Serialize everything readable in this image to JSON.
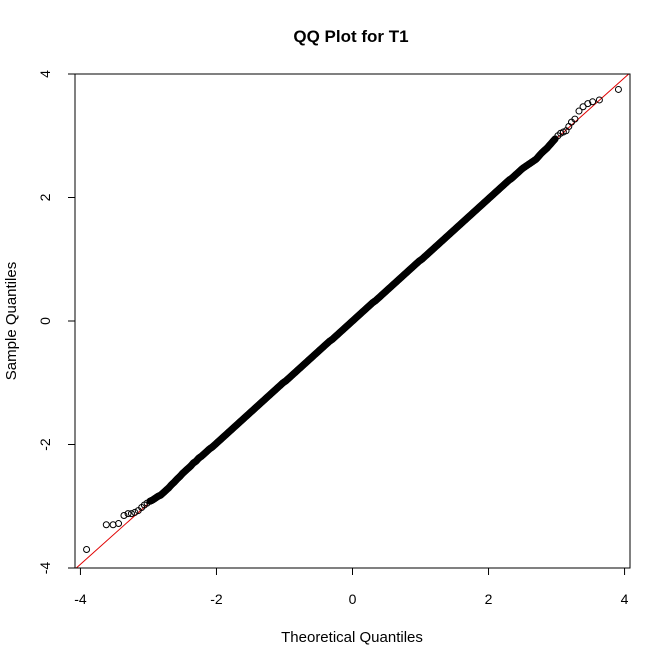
{
  "chart_data": {
    "type": "scatter",
    "title": "QQ Plot for T1",
    "xlabel": "Theoretical Quantiles",
    "ylabel": "Sample Quantiles",
    "xlim": [
      -4.08,
      4.08
    ],
    "ylim": [
      -4.0,
      4.0
    ],
    "xticks": [
      -4,
      -2,
      0,
      2,
      4
    ],
    "yticks": [
      -4,
      -2,
      0,
      2,
      4
    ],
    "grid": false,
    "legend": "none",
    "reference_line": {
      "intercept": 0.0,
      "slope": 0.985
    },
    "colors": {
      "points": "#000000",
      "reference_line": "#e00000",
      "axes": "#000000",
      "background": "#ffffff"
    },
    "series": [
      {
        "x": [
          -3.91,
          -3.62,
          -3.52,
          -3.44,
          -3.36,
          -3.3,
          -3.25,
          -3.2,
          -3.15,
          -3.1,
          -3.06,
          -3.02,
          -2.98,
          -2.94,
          -2.9,
          -2.86,
          -2.82,
          -2.78,
          -2.74,
          -2.7,
          -2.66,
          -2.62,
          -2.58,
          -2.54,
          -2.5,
          -2.46,
          -2.42,
          -2.38,
          -2.34,
          -2.3,
          -2.26,
          -2.22,
          -2.18,
          -2.14,
          -2.1,
          -2.06,
          -2.02,
          -1.98,
          -1.94,
          -1.9,
          -1.86,
          -1.82,
          -1.78,
          -1.74,
          -1.7,
          -1.66,
          -1.62,
          -1.58,
          -1.54,
          -1.5,
          -1.46,
          -1.42,
          -1.38,
          -1.34,
          -1.3,
          -1.26,
          -1.22,
          -1.18,
          -1.14,
          -1.1,
          -1.06,
          -1.02,
          -0.98,
          -0.94,
          -0.9,
          -0.86,
          -0.82,
          -0.78,
          -0.74,
          -0.7,
          -0.66,
          -0.62,
          -0.58,
          -0.54,
          -0.5,
          -0.46,
          -0.42,
          -0.38,
          -0.34,
          -0.3,
          -0.26,
          -0.22,
          -0.18,
          -0.14,
          -0.1,
          -0.06,
          -0.02,
          0.02,
          0.06,
          0.1,
          0.14,
          0.18,
          0.22,
          0.26,
          0.3,
          0.34,
          0.38,
          0.42,
          0.46,
          0.5,
          0.54,
          0.58,
          0.62,
          0.66,
          0.7,
          0.74,
          0.78,
          0.82,
          0.86,
          0.9,
          0.94,
          0.98,
          1.02,
          1.06,
          1.1,
          1.14,
          1.18,
          1.22,
          1.26,
          1.3,
          1.34,
          1.38,
          1.42,
          1.46,
          1.5,
          1.54,
          1.58,
          1.62,
          1.66,
          1.7,
          1.74,
          1.78,
          1.82,
          1.86,
          1.9,
          1.94,
          1.98,
          2.02,
          2.06,
          2.1,
          2.14,
          2.18,
          2.22,
          2.26,
          2.3,
          2.34,
          2.38,
          2.42,
          2.46,
          2.5,
          2.54,
          2.58,
          2.62,
          2.66,
          2.7,
          2.74,
          2.78,
          2.82,
          2.86,
          2.9,
          2.94,
          2.98,
          3.02,
          3.06,
          3.1,
          3.14,
          3.18,
          3.22,
          3.27,
          3.33,
          3.39,
          3.46,
          3.53,
          3.63,
          3.91
        ],
        "y": [
          -3.7,
          -3.3,
          -3.3,
          -3.28,
          -3.15,
          -3.12,
          -3.12,
          -3.1,
          -3.07,
          -3.02,
          -2.98,
          -2.95,
          -2.92,
          -2.9,
          -2.87,
          -2.84,
          -2.82,
          -2.78,
          -2.74,
          -2.7,
          -2.65,
          -2.61,
          -2.56,
          -2.52,
          -2.47,
          -2.43,
          -2.39,
          -2.35,
          -2.3,
          -2.27,
          -2.22,
          -2.19,
          -2.15,
          -2.11,
          -2.07,
          -2.04,
          -2.0,
          -1.96,
          -1.92,
          -1.88,
          -1.84,
          -1.8,
          -1.76,
          -1.72,
          -1.68,
          -1.64,
          -1.6,
          -1.56,
          -1.52,
          -1.48,
          -1.44,
          -1.4,
          -1.36,
          -1.32,
          -1.28,
          -1.24,
          -1.2,
          -1.16,
          -1.12,
          -1.08,
          -1.04,
          -1.0,
          -0.97,
          -0.93,
          -0.89,
          -0.85,
          -0.81,
          -0.77,
          -0.73,
          -0.69,
          -0.65,
          -0.61,
          -0.57,
          -0.53,
          -0.49,
          -0.45,
          -0.41,
          -0.37,
          -0.33,
          -0.3,
          -0.26,
          -0.22,
          -0.18,
          -0.14,
          -0.1,
          -0.06,
          -0.02,
          0.02,
          0.06,
          0.1,
          0.14,
          0.18,
          0.22,
          0.26,
          0.3,
          0.33,
          0.37,
          0.41,
          0.45,
          0.49,
          0.53,
          0.57,
          0.61,
          0.65,
          0.69,
          0.73,
          0.77,
          0.81,
          0.85,
          0.89,
          0.93,
          0.97,
          1.0,
          1.04,
          1.08,
          1.12,
          1.16,
          1.2,
          1.24,
          1.28,
          1.32,
          1.36,
          1.4,
          1.44,
          1.48,
          1.52,
          1.56,
          1.6,
          1.64,
          1.68,
          1.72,
          1.76,
          1.8,
          1.84,
          1.88,
          1.92,
          1.96,
          2.0,
          2.04,
          2.08,
          2.12,
          2.16,
          2.2,
          2.24,
          2.28,
          2.31,
          2.35,
          2.39,
          2.43,
          2.47,
          2.5,
          2.53,
          2.56,
          2.59,
          2.62,
          2.67,
          2.72,
          2.76,
          2.8,
          2.85,
          2.9,
          2.95,
          3.0,
          3.04,
          3.06,
          3.08,
          3.15,
          3.22,
          3.27,
          3.4,
          3.47,
          3.52,
          3.55,
          3.58,
          3.75
        ]
      }
    ]
  }
}
